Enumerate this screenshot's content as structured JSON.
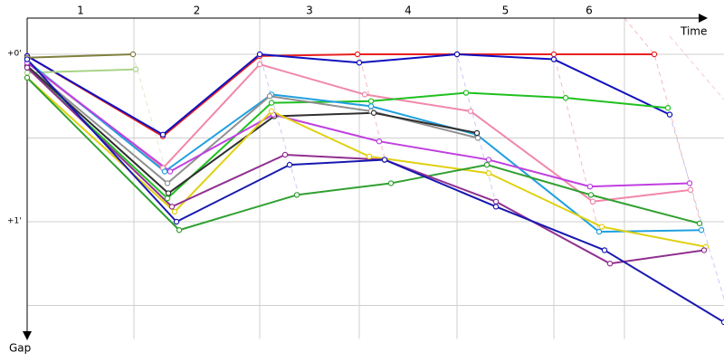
{
  "chart_data": {
    "type": "line",
    "x_title": "Time",
    "y_title": "Gap",
    "lap_labels": [
      "1",
      "2",
      "3",
      "4",
      "5",
      "6"
    ],
    "xlim": [
      0,
      770
    ],
    "xticks": [
      118,
      257,
      367,
      475,
      582,
      660
    ],
    "ylim": [
      -0.2,
      1.7
    ],
    "y_reversed": true,
    "yticks": [
      {
        "value": 0,
        "label": "+0'"
      },
      {
        "value": 0.5,
        "label": null
      },
      {
        "value": 1,
        "label": "+1'"
      },
      {
        "value": 1.5,
        "label": null
      }
    ],
    "grid": true,
    "series": [
      {
        "color": "#e82020",
        "x": [
          0,
          150,
          257,
          365,
          475,
          582,
          693
        ],
        "values": [
          0.01,
          0.49,
          0.01,
          0,
          0,
          0,
          0
        ]
      },
      {
        "color": "#1010c0",
        "x": [
          0,
          150,
          257,
          367,
          475,
          582,
          710
        ],
        "values": [
          0.01,
          0.48,
          0,
          0.05,
          0,
          0.03,
          0.36
        ]
      },
      {
        "color": "#808040",
        "x": [
          0,
          117
        ],
        "values": [
          0.02,
          0
        ]
      },
      {
        "color": "#a8d488",
        "x": [
          0,
          120
        ],
        "values": [
          0.11,
          0.09
        ]
      },
      {
        "color": "#f088a8",
        "x": [
          0,
          150,
          257,
          373,
          490,
          625,
          733
        ],
        "values": [
          0.05,
          0.68,
          0.06,
          0.24,
          0.34,
          0.88,
          0.81
        ]
      },
      {
        "color": "#20c020",
        "x": [
          0,
          155,
          270,
          380,
          485,
          595,
          708
        ],
        "values": [
          0.08,
          0.86,
          0.29,
          0.28,
          0.23,
          0.26,
          0.32
        ]
      },
      {
        "color": "#20a0e0",
        "x": [
          0,
          152,
          270,
          380,
          497,
          632,
          745
        ],
        "values": [
          0.04,
          0.7,
          0.24,
          0.31,
          0.48,
          1.06,
          1.05
        ]
      },
      {
        "color": "#909090",
        "x": [
          0,
          155,
          268,
          380,
          498
        ],
        "values": [
          0.07,
          0.77,
          0.25,
          0.34,
          0.5
        ]
      },
      {
        "color": "#303030",
        "x": [
          0,
          156,
          273,
          383,
          497
        ],
        "values": [
          0.07,
          0.83,
          0.37,
          0.35,
          0.47
        ]
      },
      {
        "color": "#c040e0",
        "x": [
          0,
          158,
          272,
          389,
          510,
          622,
          732
        ],
        "values": [
          0.05,
          0.7,
          0.36,
          0.52,
          0.63,
          0.79,
          0.77
        ]
      },
      {
        "color": "#e0d010",
        "x": [
          0,
          163,
          270,
          378,
          510,
          635,
          750
        ],
        "values": [
          0.14,
          0.94,
          0.34,
          0.61,
          0.71,
          1.03,
          1.15
        ]
      },
      {
        "color": "#30a030",
        "x": [
          0,
          168,
          298,
          402,
          508,
          623,
          743
        ],
        "values": [
          0.14,
          1.05,
          0.84,
          0.77,
          0.66,
          0.84,
          1.01
        ]
      },
      {
        "color": "#903090",
        "x": [
          0,
          160,
          285,
          395,
          518,
          644,
          748
        ],
        "values": [
          0.08,
          0.91,
          0.6,
          0.63,
          0.88,
          1.25,
          1.17
        ]
      },
      {
        "color": "#1818b0",
        "x": [
          0,
          165,
          290,
          395,
          518,
          638,
          770
        ],
        "values": [
          0.03,
          1.0,
          0.66,
          0.63,
          0.91,
          1.17,
          1.6
        ]
      }
    ]
  }
}
